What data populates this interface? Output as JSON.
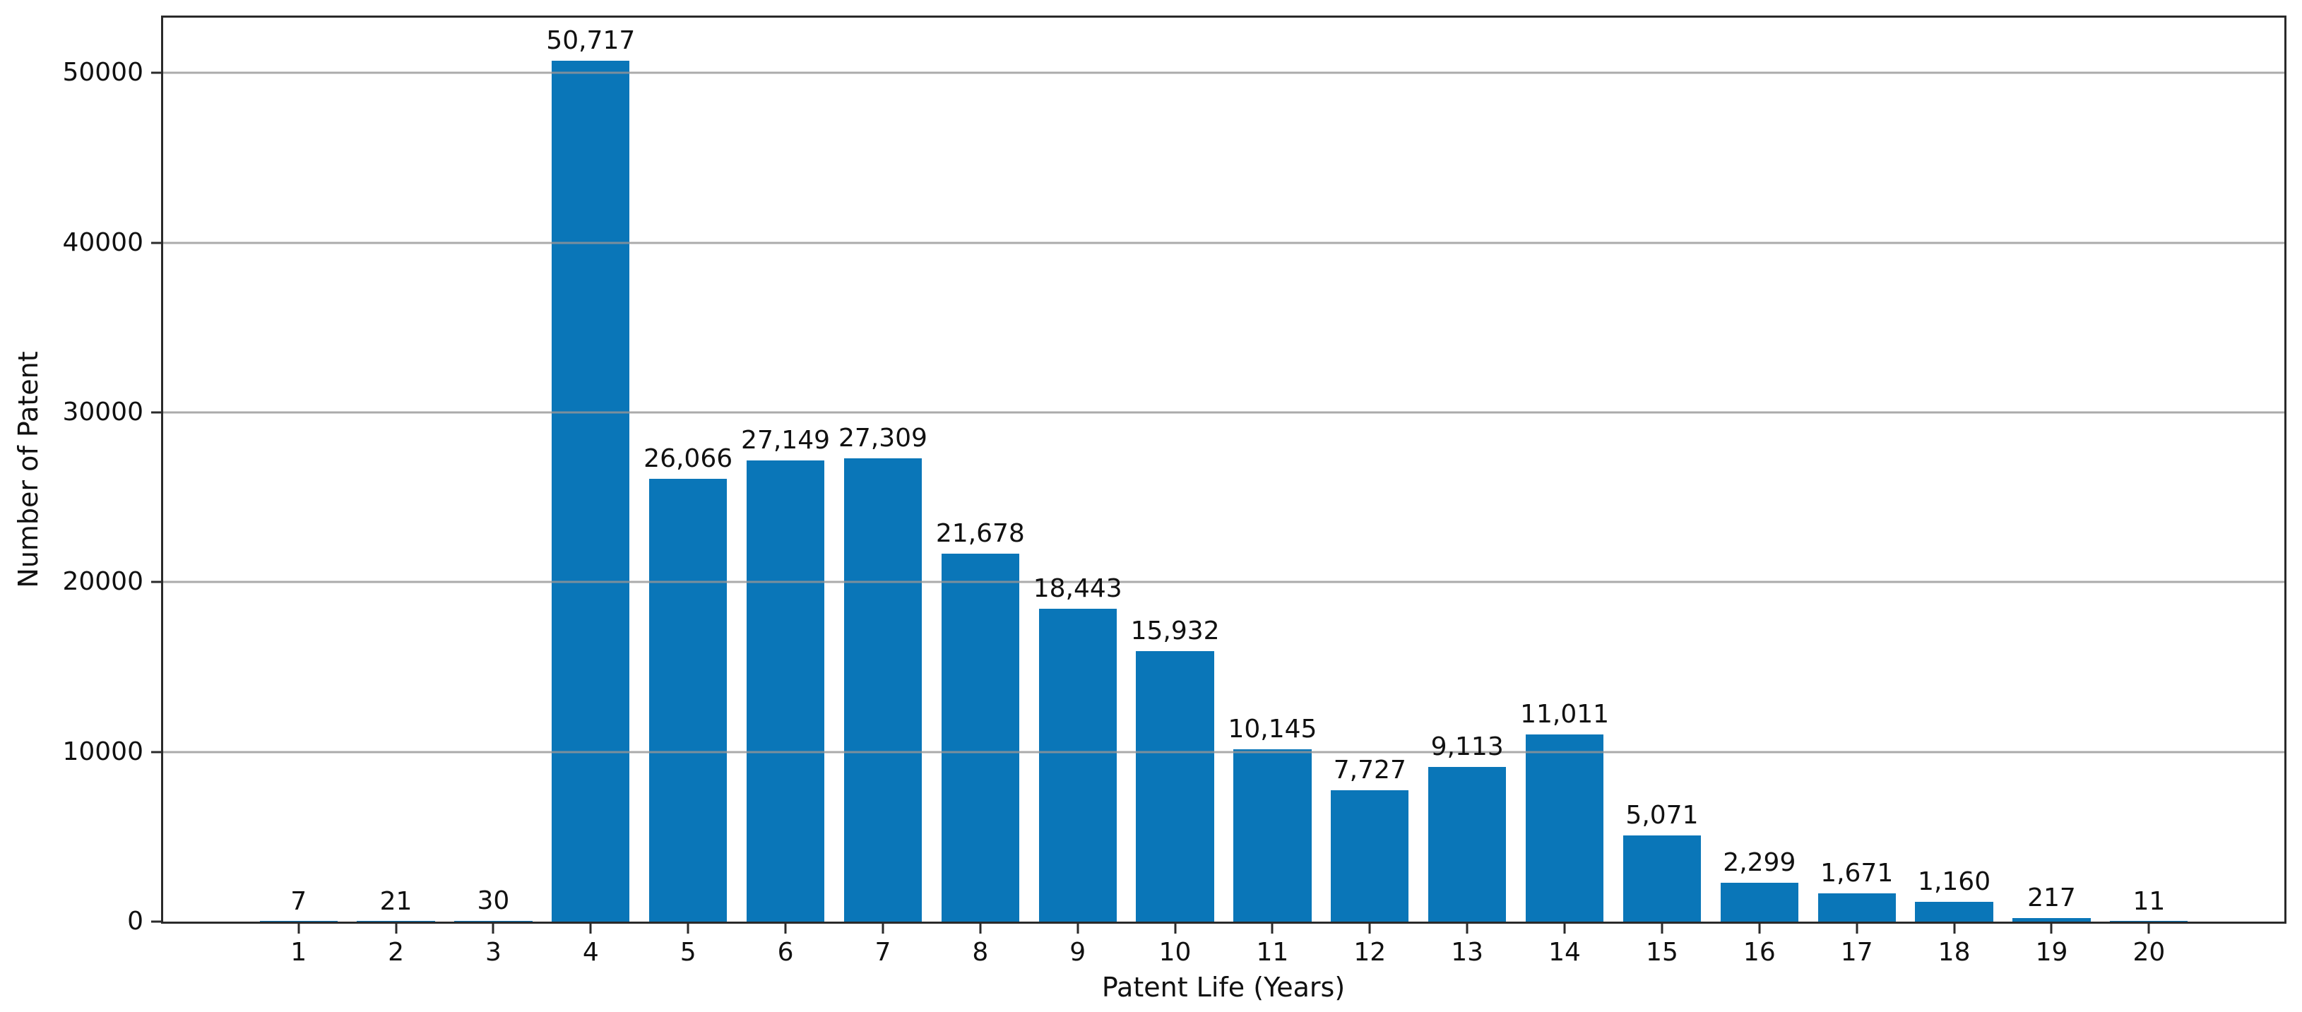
{
  "chart_data": {
    "type": "bar",
    "title": "",
    "xlabel": "Patent Life (Years)",
    "ylabel": "Number of Patent",
    "categories": [
      1,
      2,
      3,
      4,
      5,
      6,
      7,
      8,
      9,
      10,
      11,
      12,
      13,
      14,
      15,
      16,
      17,
      18,
      19,
      20
    ],
    "values": [
      7,
      21,
      30,
      50717,
      26066,
      27149,
      27309,
      21678,
      18443,
      15932,
      10145,
      7727,
      9113,
      11011,
      5071,
      2299,
      1671,
      1160,
      217,
      11
    ],
    "value_labels": [
      "7",
      "21",
      "30",
      "50,717",
      "26,066",
      "27,149",
      "27,309",
      "21,678",
      "18,443",
      "15,932",
      "10,145",
      "7,727",
      "9,113",
      "11,011",
      "5,071",
      "2,299",
      "1,671",
      "1,160",
      "217",
      "11"
    ],
    "x_tick_labels": [
      "1",
      "2",
      "3",
      "4",
      "5",
      "6",
      "7",
      "8",
      "9",
      "10",
      "11",
      "12",
      "13",
      "14",
      "15",
      "16",
      "17",
      "18",
      "19",
      "20"
    ],
    "y_ticks": [
      0,
      10000,
      20000,
      30000,
      40000,
      50000
    ],
    "y_tick_labels": [
      "0",
      "10000",
      "20000",
      "30000",
      "40000",
      "50000"
    ],
    "ylim": [
      0,
      53253
    ],
    "xlim": [
      -0.39,
      21.39
    ],
    "bar_width": 0.8,
    "grid": true,
    "legend": "none",
    "bar_color": "#0a76b8",
    "grid_color": "#969696",
    "spine_color": "#2a2a2a",
    "text_color": "#111111"
  }
}
